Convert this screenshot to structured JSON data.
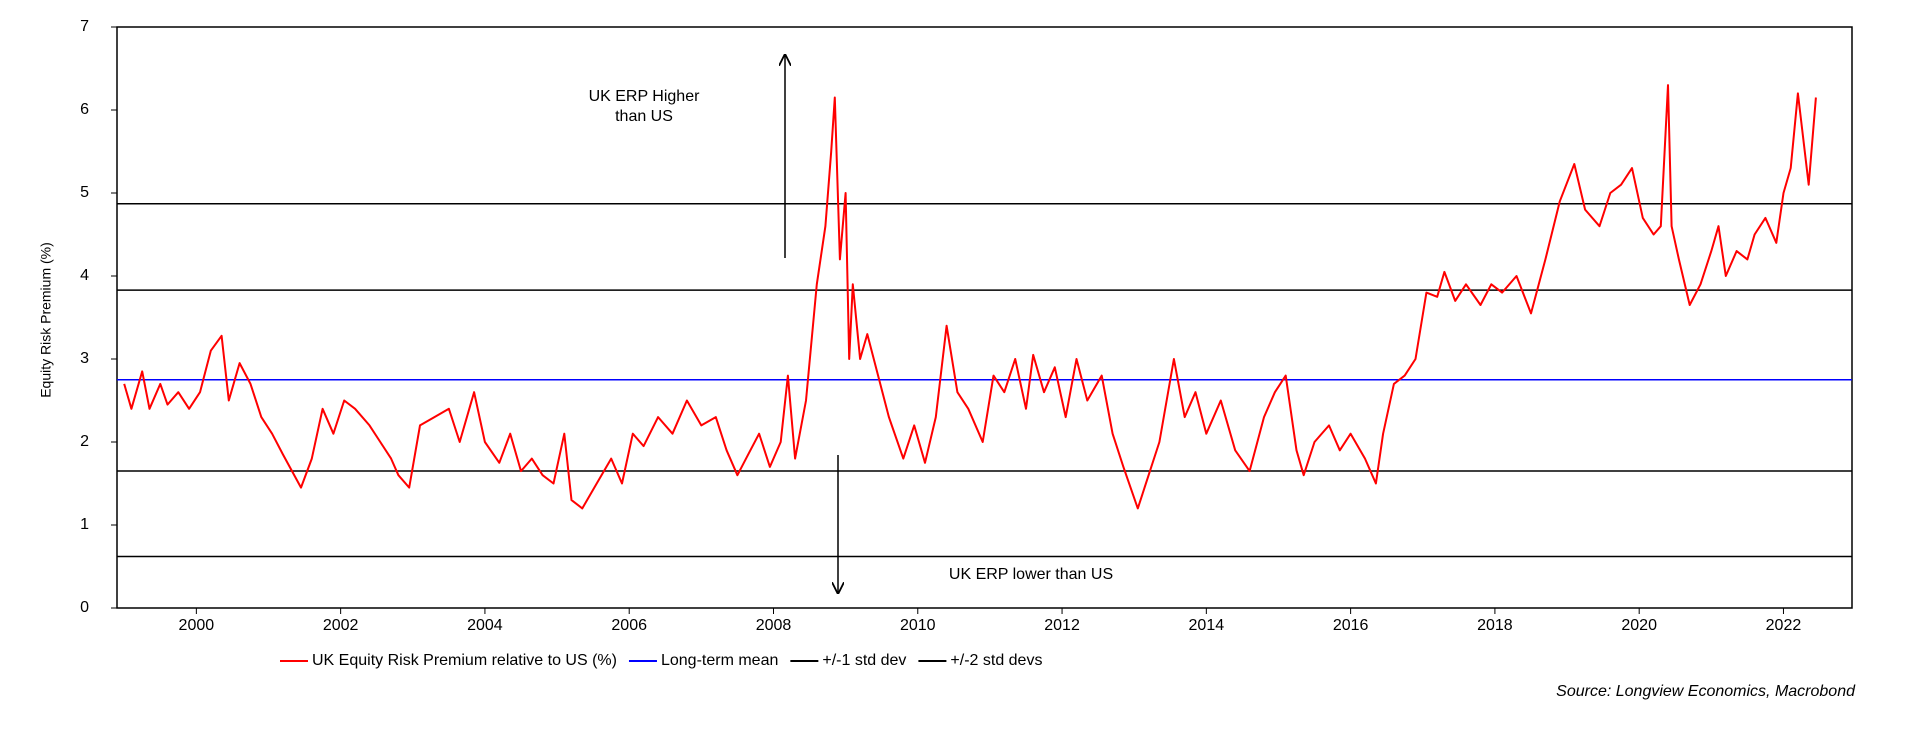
{
  "chart_data": {
    "type": "line",
    "ylabel": "Equity Risk Premium (%)",
    "source": "Source: Longview Economics, Macrobond",
    "annotations": [
      {
        "lines": [
          "UK ERP Higher",
          "than US"
        ]
      },
      {
        "lines": [
          "UK ERP lower than US"
        ]
      }
    ],
    "xlim": [
      1998.9,
      2022.95
    ],
    "xticks": [
      2000,
      2002,
      2004,
      2006,
      2008,
      2010,
      2012,
      2014,
      2016,
      2018,
      2020,
      2022
    ],
    "ylim": [
      0,
      7
    ],
    "yticks": [
      0,
      1,
      2,
      3,
      4,
      5,
      6,
      7
    ],
    "grid": false,
    "series": [
      {
        "name": "UK Equity Risk Premium relative to US (%)",
        "color": "#ff0000",
        "x": [
          1999.0,
          1999.1,
          1999.25,
          1999.35,
          1999.5,
          1999.6,
          1999.75,
          1999.9,
          2000.05,
          2000.2,
          2000.35,
          2000.45,
          2000.6,
          2000.75,
          2000.9,
          2001.05,
          2001.2,
          2001.45,
          2001.6,
          2001.75,
          2001.9,
          2002.05,
          2002.2,
          2002.4,
          2002.55,
          2002.7,
          2002.8,
          2002.95,
          2003.1,
          2003.3,
          2003.5,
          2003.65,
          2003.85,
          2004.0,
          2004.2,
          2004.35,
          2004.5,
          2004.65,
          2004.8,
          2004.95,
          2005.1,
          2005.2,
          2005.35,
          2005.55,
          2005.75,
          2005.9,
          2006.05,
          2006.2,
          2006.4,
          2006.6,
          2006.8,
          2007.0,
          2007.2,
          2007.35,
          2007.5,
          2007.65,
          2007.8,
          2007.95,
          2008.1,
          2008.2,
          2008.3,
          2008.45,
          2008.6,
          2008.72,
          2008.8,
          2008.85,
          2008.92,
          2009.0,
          2009.05,
          2009.1,
          2009.2,
          2009.3,
          2009.45,
          2009.6,
          2009.8,
          2009.95,
          2010.1,
          2010.25,
          2010.4,
          2010.55,
          2010.7,
          2010.9,
          2011.05,
          2011.2,
          2011.35,
          2011.5,
          2011.6,
          2011.75,
          2011.9,
          2012.05,
          2012.2,
          2012.35,
          2012.55,
          2012.7,
          2012.85,
          2013.05,
          2013.2,
          2013.35,
          2013.55,
          2013.7,
          2013.85,
          2014.0,
          2014.2,
          2014.4,
          2014.6,
          2014.8,
          2014.95,
          2015.1,
          2015.25,
          2015.35,
          2015.5,
          2015.7,
          2015.85,
          2016.0,
          2016.2,
          2016.35,
          2016.45,
          2016.6,
          2016.75,
          2016.9,
          2017.05,
          2017.2,
          2017.3,
          2017.45,
          2017.6,
          2017.8,
          2017.95,
          2018.1,
          2018.3,
          2018.5,
          2018.7,
          2018.9,
          2019.1,
          2019.25,
          2019.45,
          2019.6,
          2019.75,
          2019.9,
          2020.05,
          2020.2,
          2020.3,
          2020.4,
          2020.45,
          2020.55,
          2020.7,
          2020.85,
          2021.0,
          2021.1,
          2021.2,
          2021.35,
          2021.5,
          2021.6,
          2021.75,
          2021.9,
          2022.0,
          2022.1,
          2022.2,
          2022.35,
          2022.45
        ],
        "values": [
          2.7,
          2.4,
          2.85,
          2.4,
          2.7,
          2.45,
          2.6,
          2.4,
          2.6,
          3.1,
          3.28,
          2.5,
          2.95,
          2.7,
          2.3,
          2.1,
          1.85,
          1.45,
          1.8,
          2.4,
          2.1,
          2.5,
          2.4,
          2.2,
          2.0,
          1.8,
          1.6,
          1.45,
          2.2,
          2.3,
          2.4,
          2.0,
          2.6,
          2.0,
          1.75,
          2.1,
          1.65,
          1.8,
          1.6,
          1.5,
          2.1,
          1.3,
          1.2,
          1.5,
          1.8,
          1.5,
          2.1,
          1.95,
          2.3,
          2.1,
          2.5,
          2.2,
          2.3,
          1.9,
          1.6,
          1.85,
          2.1,
          1.7,
          2.0,
          2.8,
          1.8,
          2.5,
          3.9,
          4.6,
          5.5,
          6.15,
          4.2,
          5.0,
          3.0,
          3.9,
          3.0,
          3.3,
          2.8,
          2.3,
          1.8,
          2.2,
          1.75,
          2.3,
          3.4,
          2.6,
          2.4,
          2.0,
          2.8,
          2.6,
          3.0,
          2.4,
          3.05,
          2.6,
          2.9,
          2.3,
          3.0,
          2.5,
          2.8,
          2.1,
          1.7,
          1.2,
          1.6,
          2.0,
          3.0,
          2.3,
          2.6,
          2.1,
          2.5,
          1.9,
          1.65,
          2.3,
          2.6,
          2.8,
          1.9,
          1.6,
          2.0,
          2.2,
          1.9,
          2.1,
          1.8,
          1.5,
          2.1,
          2.7,
          2.8,
          3.0,
          3.8,
          3.75,
          4.05,
          3.7,
          3.9,
          3.65,
          3.9,
          3.8,
          4.0,
          3.55,
          4.2,
          4.9,
          5.35,
          4.8,
          4.6,
          5.0,
          5.1,
          5.3,
          4.7,
          4.5,
          4.6,
          6.3,
          4.6,
          4.2,
          3.65,
          3.9,
          4.3,
          4.6,
          4.0,
          4.3,
          4.2,
          4.5,
          4.7,
          4.4,
          5.0,
          5.3,
          6.2,
          5.1,
          6.15
        ]
      }
    ],
    "hlines": [
      {
        "name": "Long-term mean",
        "color": "#0000ff",
        "values": [
          2.75
        ]
      },
      {
        "name": "+/-1 std dev",
        "color": "#000000",
        "values": [
          3.83,
          1.65
        ]
      },
      {
        "name": "+/-2 std devs",
        "color": "#000000",
        "values": [
          4.87,
          0.62
        ]
      }
    ]
  }
}
